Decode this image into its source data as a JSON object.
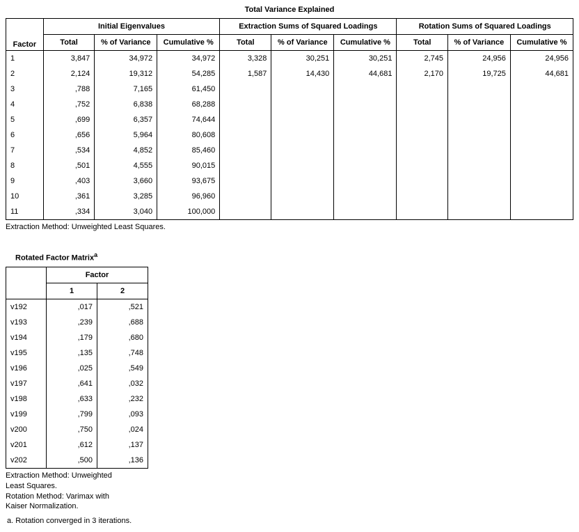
{
  "table1": {
    "title": "Total Variance Explained",
    "groupHeaders": [
      "Initial Eigenvalues",
      "Extraction Sums of Squared Loadings",
      "Rotation Sums of Squared Loadings"
    ],
    "factorLabel": "Factor",
    "subHeaders": [
      "Total",
      "% of Variance",
      "Cumulative %"
    ],
    "rows": [
      {
        "f": "1",
        "i": [
          "3,847",
          "34,972",
          "34,972"
        ],
        "e": [
          "3,328",
          "30,251",
          "30,251"
        ],
        "r": [
          "2,745",
          "24,956",
          "24,956"
        ]
      },
      {
        "f": "2",
        "i": [
          "2,124",
          "19,312",
          "54,285"
        ],
        "e": [
          "1,587",
          "14,430",
          "44,681"
        ],
        "r": [
          "2,170",
          "19,725",
          "44,681"
        ]
      },
      {
        "f": "3",
        "i": [
          ",788",
          "7,165",
          "61,450"
        ],
        "e": [
          "",
          "",
          ""
        ],
        "r": [
          "",
          "",
          ""
        ]
      },
      {
        "f": "4",
        "i": [
          ",752",
          "6,838",
          "68,288"
        ],
        "e": [
          "",
          "",
          ""
        ],
        "r": [
          "",
          "",
          ""
        ]
      },
      {
        "f": "5",
        "i": [
          ",699",
          "6,357",
          "74,644"
        ],
        "e": [
          "",
          "",
          ""
        ],
        "r": [
          "",
          "",
          ""
        ]
      },
      {
        "f": "6",
        "i": [
          ",656",
          "5,964",
          "80,608"
        ],
        "e": [
          "",
          "",
          ""
        ],
        "r": [
          "",
          "",
          ""
        ]
      },
      {
        "f": "7",
        "i": [
          ",534",
          "4,852",
          "85,460"
        ],
        "e": [
          "",
          "",
          ""
        ],
        "r": [
          "",
          "",
          ""
        ]
      },
      {
        "f": "8",
        "i": [
          ",501",
          "4,555",
          "90,015"
        ],
        "e": [
          "",
          "",
          ""
        ],
        "r": [
          "",
          "",
          ""
        ]
      },
      {
        "f": "9",
        "i": [
          ",403",
          "3,660",
          "93,675"
        ],
        "e": [
          "",
          "",
          ""
        ],
        "r": [
          "",
          "",
          ""
        ]
      },
      {
        "f": "10",
        "i": [
          ",361",
          "3,285",
          "96,960"
        ],
        "e": [
          "",
          "",
          ""
        ],
        "r": [
          "",
          "",
          ""
        ]
      },
      {
        "f": "11",
        "i": [
          ",334",
          "3,040",
          "100,000"
        ],
        "e": [
          "",
          "",
          ""
        ],
        "r": [
          "",
          "",
          ""
        ]
      }
    ],
    "footnote": "Extraction Method: Unweighted Least Squares.",
    "colWidths": {
      "factor": 45,
      "sub": 80
    },
    "colors": {
      "border": "#000000",
      "bg": "#ffffff",
      "text": "#000000"
    }
  },
  "table2": {
    "title": "Rotated Factor Matrix",
    "titleSuper": "a",
    "factorLabel": "Factor",
    "subHeaders": [
      "1",
      "2"
    ],
    "rows": [
      {
        "v": "v192",
        "c": [
          ",017",
          ",521"
        ]
      },
      {
        "v": "v193",
        "c": [
          ",239",
          ",688"
        ]
      },
      {
        "v": "v194",
        "c": [
          ",179",
          ",680"
        ]
      },
      {
        "v": "v195",
        "c": [
          ",135",
          ",748"
        ]
      },
      {
        "v": "v196",
        "c": [
          ",025",
          ",549"
        ]
      },
      {
        "v": "v197",
        "c": [
          ",641",
          ",032"
        ]
      },
      {
        "v": "v198",
        "c": [
          ",633",
          ",232"
        ]
      },
      {
        "v": "v199",
        "c": [
          ",799",
          ",093"
        ]
      },
      {
        "v": "v200",
        "c": [
          ",750",
          ",024"
        ]
      },
      {
        "v": "v201",
        "c": [
          ",612",
          ",137"
        ]
      },
      {
        "v": "v202",
        "c": [
          ",500",
          ",136"
        ]
      }
    ],
    "footnote1": "Extraction Method: Unweighted Least Squares.",
    "footnote2": " Rotation Method: Varimax with Kaiser Normalization.",
    "footnoteA": "a. Rotation converged in 3 iterations.",
    "colWidths": {
      "var": 45,
      "sub": 60
    }
  }
}
